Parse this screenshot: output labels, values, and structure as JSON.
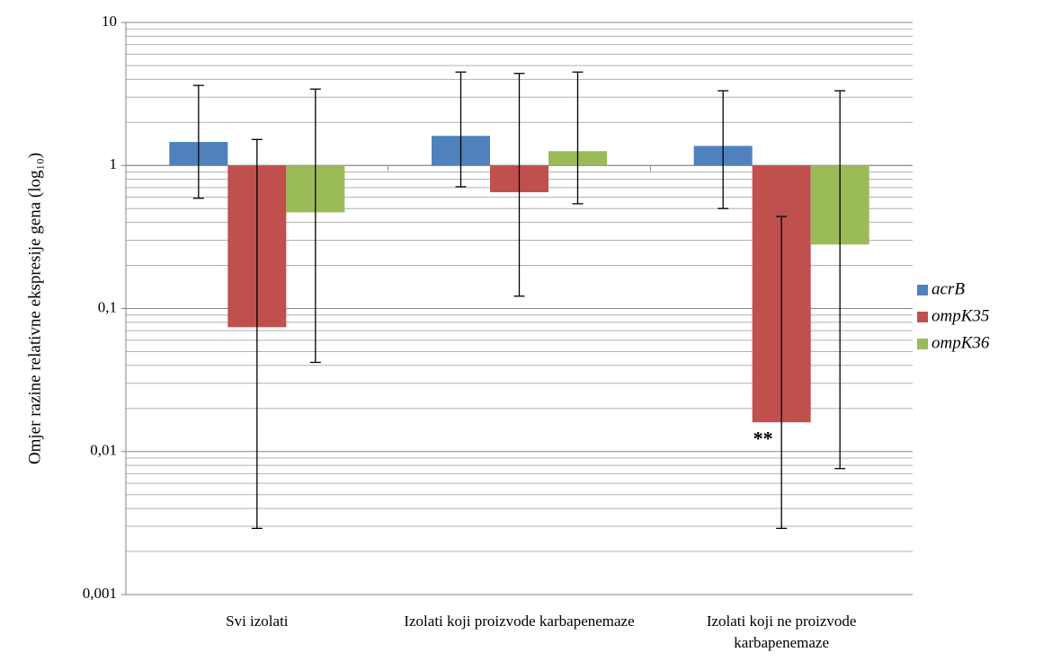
{
  "chart_data": {
    "type": "bar",
    "log_scale": true,
    "baseline": 1,
    "grid": true,
    "minor_grid": true,
    "legend": "right",
    "ylabel": "Omjer razine relativne  ekspresije  gena (log₁₀)",
    "categories": [
      "Svi izolati",
      "Izolati koji proizvode karbapenemaze",
      "Izolati koji ne proizvode karbapenemaze"
    ],
    "ylim": [
      0.001,
      10
    ],
    "yticks": [
      {
        "value": 0.001,
        "label": "0,001"
      },
      {
        "value": 0.01,
        "label": "0,01"
      },
      {
        "value": 0.1,
        "label": "0,1"
      },
      1,
      10
    ],
    "series": [
      {
        "name": "acrB",
        "color": "#4f81bd",
        "values": [
          1.46,
          1.61,
          1.37
        ],
        "error_high": [
          3.63,
          4.5,
          3.33
        ],
        "error_low": [
          0.59,
          0.71,
          0.5
        ]
      },
      {
        "name": "ompK35",
        "color": "#c0504d",
        "values": [
          0.074,
          0.65,
          0.016
        ],
        "error_high": [
          1.52,
          4.4,
          0.44
        ],
        "error_low": [
          0.0029,
          0.122,
          0.0029
        ]
      },
      {
        "name": "ompK36",
        "color": "#9bbb59",
        "values": [
          0.47,
          1.26,
          0.28
        ],
        "error_high": [
          3.42,
          4.5,
          3.33
        ],
        "error_low": [
          0.042,
          0.54,
          0.0076
        ]
      }
    ],
    "annotations": [
      {
        "text": "**",
        "series": 1,
        "category": 2
      }
    ]
  }
}
